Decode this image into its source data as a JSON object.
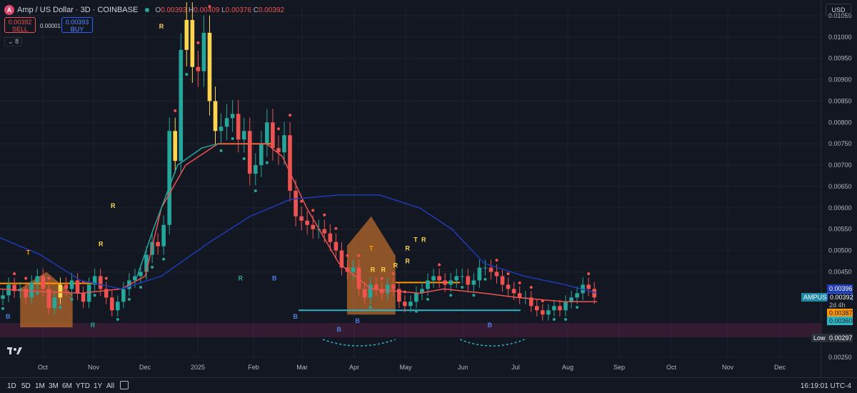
{
  "header": {
    "logo_letter": "A",
    "symbol": "Amp / US Dollar · 3D · COINBASE",
    "ohlc": {
      "o_label": "O",
      "o": "0.00393",
      "h_label": "H",
      "h": "0.00409",
      "l_label": "L",
      "l": "0.00376",
      "c_label": "C",
      "c": "0.00392"
    },
    "sell_price": "0.00392",
    "sell_label": "SELL",
    "buy_price": "0.00393",
    "buy_label": "BUY",
    "spread": "0.00001",
    "indicator_count": "8",
    "currency": "USD"
  },
  "price_tags": {
    "symbol_label": "AMPUSD",
    "ma_top": "0.00396",
    "last": "0.00392",
    "countdown": "2d 4h",
    "orange": "0.00387",
    "cyan": "0.00360",
    "low_label": "Low",
    "low": "0.00297"
  },
  "timeframes": [
    "1D",
    "5D",
    "1M",
    "3M",
    "6M",
    "YTD",
    "1Y",
    "All"
  ],
  "clock": "16:19:01 UTC-4",
  "colors": {
    "up": "#26a69a",
    "down": "#ef5350",
    "highlight": "#ffd54f",
    "signal_blue": "#3f6fd8",
    "signal_cyan": "#29b6c6",
    "sma": "#1e3bb3",
    "background": "#131722",
    "zone": "#b8692c",
    "band": "#4a1f3c"
  },
  "chart_data": {
    "type": "candlestick",
    "ylim": [
      0.0025,
      0.0107
    ],
    "y_ticks": [
      "0.01050",
      "0.01000",
      "0.00950",
      "0.00900",
      "0.00850",
      "0.00800",
      "0.00750",
      "0.00700",
      "0.00650",
      "0.00600",
      "0.00550",
      "0.00500",
      "0.00450",
      "0.00250"
    ],
    "x_ticks": [
      "Oct",
      "Nov",
      "Dec",
      "2025",
      "Feb",
      "Mar",
      "Apr",
      "May",
      "Jun",
      "Jul",
      "Aug",
      "Sep",
      "Oct",
      "Nov",
      "Dec"
    ],
    "candle_closes": [
      0.00395,
      0.0042,
      0.00405,
      0.0041,
      0.0039,
      0.00425,
      0.0044,
      0.0041,
      0.00365,
      0.0039,
      0.0042,
      0.0041,
      0.0043,
      0.004,
      0.0038,
      0.0042,
      0.0044,
      0.0041,
      0.0039,
      0.0036,
      0.0038,
      0.0041,
      0.0043,
      0.0044,
      0.0045,
      0.0049,
      0.0052,
      0.0051,
      0.0056,
      0.0078,
      0.0071,
      0.0097,
      0.0104,
      0.0093,
      0.0092,
      0.0101,
      0.0085,
      0.0078,
      0.0079,
      0.0081,
      0.0082,
      0.0076,
      0.0078,
      0.0068,
      0.007,
      0.0075,
      0.008,
      0.0074,
      0.0073,
      0.0077,
      0.0064,
      0.0058,
      0.0057,
      0.0056,
      0.0055,
      0.0055,
      0.0054,
      0.0052,
      0.005,
      0.0046,
      0.0045,
      0.0046,
      0.0041,
      0.0039,
      0.0042,
      0.0041,
      0.004,
      0.0042,
      0.0041,
      0.0038,
      0.0037,
      0.0038,
      0.004,
      0.0041,
      0.0043,
      0.0044,
      0.0043,
      0.0042,
      0.0043,
      0.0044,
      0.0044,
      0.0042,
      0.0043,
      0.0046,
      0.0046,
      0.0045,
      0.0044,
      0.0042,
      0.0041,
      0.004,
      0.0039,
      0.0039,
      0.0037,
      0.0036,
      0.0035,
      0.0036,
      0.0037,
      0.0036,
      0.0038,
      0.0039,
      0.004,
      0.0042,
      0.0041,
      0.0039
    ],
    "candle_highlights": [
      10,
      30,
      32,
      33,
      36,
      37
    ],
    "lines": [
      {
        "color": "#ef5350",
        "points": [
          [
            0.0,
            0.0041
          ],
          [
            0.04,
            0.00405
          ],
          [
            0.1,
            0.004
          ],
          [
            0.15,
            0.0041
          ],
          [
            0.18,
            0.0044
          ],
          [
            0.2,
            0.006
          ],
          [
            0.23,
            0.007
          ],
          [
            0.27,
            0.0075
          ],
          [
            0.33,
            0.0075
          ],
          [
            0.35,
            0.0072
          ],
          [
            0.38,
            0.006
          ],
          [
            0.42,
            0.0047
          ],
          [
            0.46,
            0.0041
          ],
          [
            0.52,
            0.004
          ],
          [
            0.55,
            0.0041
          ],
          [
            0.6,
            0.004
          ],
          [
            0.64,
            0.0039
          ],
          [
            0.7,
            0.0038
          ],
          [
            0.74,
            0.0038
          ]
        ]
      },
      {
        "color": "#26a69a",
        "points": [
          [
            0.17,
            0.0044
          ],
          [
            0.19,
            0.0055
          ],
          [
            0.22,
            0.007
          ],
          [
            0.25,
            0.0074
          ],
          [
            0.27,
            0.0075
          ]
        ]
      },
      {
        "color": "#1e3bb3",
        "points": [
          [
            0.0,
            0.0053
          ],
          [
            0.05,
            0.0049
          ],
          [
            0.1,
            0.0043
          ],
          [
            0.15,
            0.0041
          ],
          [
            0.2,
            0.0044
          ],
          [
            0.26,
            0.0052
          ],
          [
            0.31,
            0.0058
          ],
          [
            0.36,
            0.0062
          ],
          [
            0.42,
            0.0063
          ],
          [
            0.47,
            0.0063
          ],
          [
            0.52,
            0.006
          ],
          [
            0.56,
            0.0055
          ],
          [
            0.6,
            0.0047
          ],
          [
            0.65,
            0.0044
          ],
          [
            0.7,
            0.0042
          ],
          [
            0.74,
            0.004
          ]
        ]
      }
    ],
    "zones": [
      {
        "x0": 0.025,
        "x1": 0.09,
        "top": 0.0045,
        "bottom": 0.0032
      },
      {
        "x0": 0.43,
        "x1": 0.49,
        "top": 0.0058,
        "bottom": 0.0035
      }
    ],
    "horizontal_levels": [
      {
        "price": 0.00423,
        "x0": 0.0,
        "x1": 0.12,
        "color": "#ff9800"
      },
      {
        "price": 0.0075,
        "x0": 0.27,
        "x1": 0.34,
        "color": "#ff9800"
      },
      {
        "price": 0.00425,
        "x0": 0.49,
        "x1": 0.57,
        "color": "#ff9800"
      },
      {
        "price": 0.0036,
        "x0": 0.37,
        "x1": 0.645,
        "color": "#29b6c6"
      }
    ],
    "band": {
      "top": 0.0033,
      "bottom": 0.00297
    },
    "annotations": [
      {
        "t": "T",
        "x": 0.035,
        "price": 0.0049,
        "color": "#ff9800"
      },
      {
        "t": "R",
        "x": 0.14,
        "price": 0.006,
        "color": "#ffd54f"
      },
      {
        "t": "R",
        "x": 0.125,
        "price": 0.0051,
        "color": "#ffd54f"
      },
      {
        "t": "R",
        "x": 0.2,
        "price": 0.0102,
        "color": "#ffd54f"
      },
      {
        "t": "T",
        "x": 0.46,
        "price": 0.005,
        "color": "#ff9800"
      },
      {
        "t": "R",
        "x": 0.462,
        "price": 0.0045,
        "color": "#ffd54f"
      },
      {
        "t": "R",
        "x": 0.475,
        "price": 0.0045,
        "color": "#ffd54f"
      },
      {
        "t": "R",
        "x": 0.49,
        "price": 0.0046,
        "color": "#ffd54f"
      },
      {
        "t": "R",
        "x": 0.505,
        "price": 0.0047,
        "color": "#ffd54f"
      },
      {
        "t": "R",
        "x": 0.505,
        "price": 0.005,
        "color": "#ffd54f"
      },
      {
        "t": "T",
        "x": 0.515,
        "price": 0.0052,
        "color": "#ffd54f"
      },
      {
        "t": "R",
        "x": 0.525,
        "price": 0.0052,
        "color": "#ffd54f"
      },
      {
        "t": "B",
        "x": 0.01,
        "price": 0.0034,
        "color": "#4f7de0"
      },
      {
        "t": "R",
        "x": 0.115,
        "price": 0.0032,
        "color": "#26a69a"
      },
      {
        "t": "R",
        "x": 0.298,
        "price": 0.0043,
        "color": "#26a69a"
      },
      {
        "t": "B",
        "x": 0.34,
        "price": 0.0043,
        "color": "#4f7de0"
      },
      {
        "t": "B",
        "x": 0.366,
        "price": 0.0034,
        "color": "#4f7de0"
      },
      {
        "t": "B",
        "x": 0.42,
        "price": 0.0031,
        "color": "#4f7de0"
      },
      {
        "t": "B",
        "x": 0.443,
        "price": 0.0033,
        "color": "#4f7de0"
      },
      {
        "t": "B",
        "x": 0.607,
        "price": 0.0032,
        "color": "#4f7de0"
      }
    ]
  }
}
